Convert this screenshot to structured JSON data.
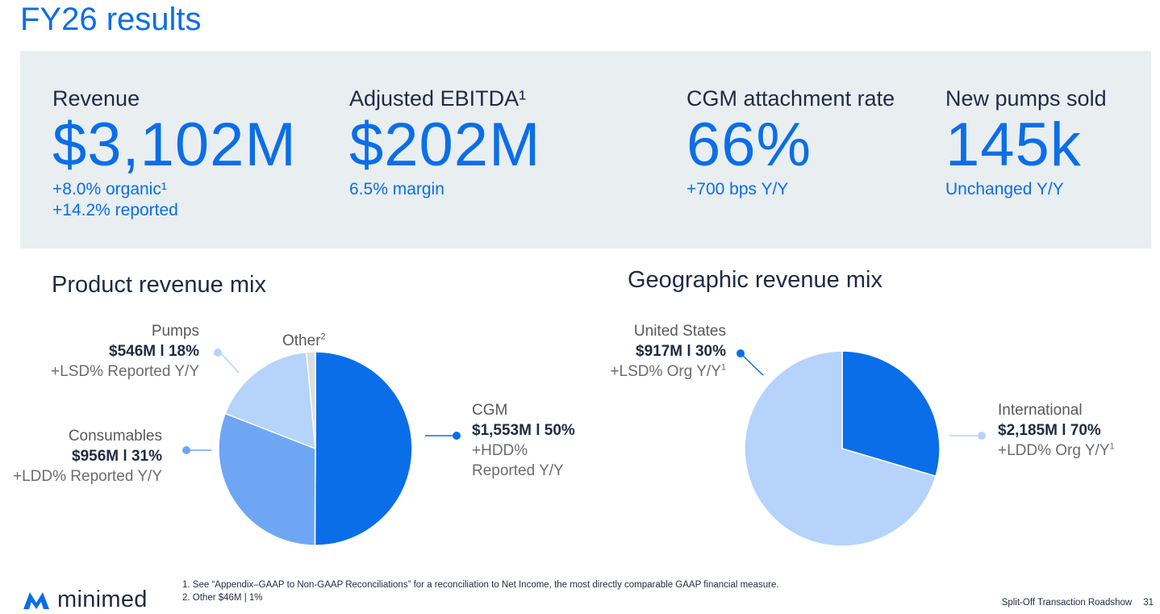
{
  "title": "FY26 results",
  "kpis": [
    {
      "label": "Revenue",
      "label_sup": "",
      "value": "$3,102M",
      "sub1": "+8.0% organic¹",
      "sub2": "+14.2% reported"
    },
    {
      "label": "Adjusted EBITDA¹",
      "label_sup": "",
      "value": "$202M",
      "sub1": "6.5% margin",
      "sub2": ""
    },
    {
      "label": "CGM attachment rate",
      "label_sup": "",
      "value": "66%",
      "sub1": "+700 bps Y/Y",
      "sub2": ""
    },
    {
      "label": "New pumps sold",
      "label_sup": "",
      "value": "145k",
      "sub1": "Unchanged Y/Y",
      "sub2": ""
    }
  ],
  "product_mix": {
    "title": "Product revenue mix",
    "labels": {
      "pumps": {
        "name": "Pumps",
        "value": "$546M l 18%",
        "change": "+LSD% Reported Y/Y"
      },
      "other": {
        "name": "Other",
        "sup": "2"
      },
      "consumables": {
        "name": "Consumables",
        "value": "$956M l 31%",
        "change": "+LDD% Reported Y/Y"
      },
      "cgm": {
        "name": "CGM",
        "value": "$1,553M l 50%",
        "change1": "+HDD%",
        "change2": "Reported Y/Y"
      }
    }
  },
  "geo_mix": {
    "title": "Geographic revenue mix",
    "labels": {
      "us": {
        "name": "United States",
        "value": "$917M l 30%",
        "change": "+LSD% Org Y/Y",
        "sup": "1"
      },
      "intl": {
        "name": "International",
        "value": "$2,185M l 70%",
        "change": "+LDD% Org Y/Y",
        "sup": "1"
      }
    }
  },
  "chart_data": [
    {
      "type": "pie",
      "title": "Product revenue mix",
      "categories": [
        "CGM",
        "Consumables",
        "Pumps",
        "Other"
      ],
      "values": [
        1553,
        956,
        546,
        46
      ],
      "percent": [
        50,
        31,
        18,
        1
      ],
      "colors": [
        "#0a6ee8",
        "#6fa6f3",
        "#b5d3fb",
        "#d9dde1"
      ]
    },
    {
      "type": "pie",
      "title": "Geographic revenue mix",
      "categories": [
        "United States",
        "International"
      ],
      "values": [
        917,
        2185
      ],
      "percent": [
        30,
        70
      ],
      "colors": [
        "#0a6ee8",
        "#b5d3fb"
      ]
    }
  ],
  "footnotes": [
    "1. See  “Appendix–GAAP to Non-GAAP Reconciliations” for a reconciliation to Net Income, the most directly comparable GAAP financial measure.",
    "2. Other $46M | 1%"
  ],
  "footer": {
    "text": "Split-Off Transaction Roadshow",
    "page": "31"
  },
  "logo": {
    "text": "minimed"
  }
}
